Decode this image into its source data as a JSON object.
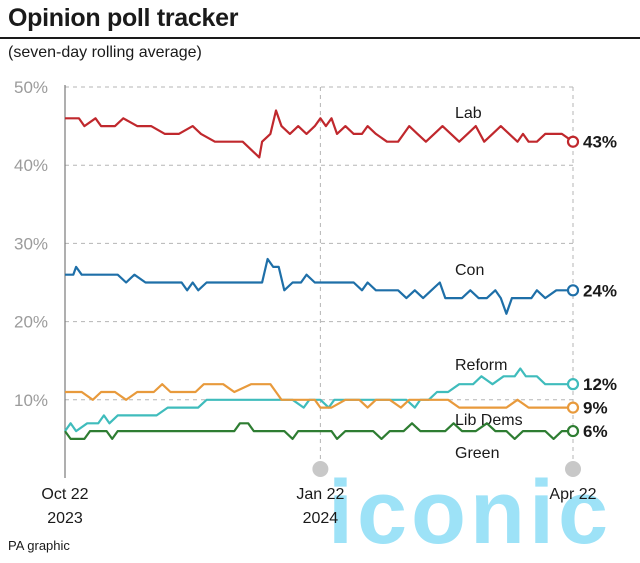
{
  "header": {
    "title": "Opinion poll tracker",
    "subtitle": "(seven-day rolling average)"
  },
  "footer": {
    "credit": "PA graphic"
  },
  "watermark": "iconic",
  "chart_data": {
    "type": "line",
    "grid": true,
    "ylim": [
      0,
      50
    ],
    "y_ticks": [
      {
        "value": 10,
        "label": "10%"
      },
      {
        "value": 20,
        "label": "20%"
      },
      {
        "value": 30,
        "label": "30%"
      },
      {
        "value": 40,
        "label": "40%"
      },
      {
        "value": 50,
        "label": "50%"
      }
    ],
    "x_ticks": [
      {
        "date": "2023-10-22",
        "line1": "Oct 22",
        "line2": "2023"
      },
      {
        "date": "2024-01-22",
        "line1": "Jan 22",
        "line2": "2024"
      },
      {
        "date": "2024-04-22",
        "line1": "Apr 22",
        "line2": ""
      }
    ],
    "series": [
      {
        "name": "Lab",
        "color": "#c0282d",
        "end_label": "43%",
        "points": [
          [
            "2023-10-22",
            46
          ],
          [
            "2023-10-27",
            46
          ],
          [
            "2023-10-29",
            45
          ],
          [
            "2023-11-02",
            46
          ],
          [
            "2023-11-04",
            45
          ],
          [
            "2023-11-09",
            45
          ],
          [
            "2023-11-12",
            46
          ],
          [
            "2023-11-17",
            45
          ],
          [
            "2023-11-22",
            45
          ],
          [
            "2023-11-27",
            44
          ],
          [
            "2023-12-02",
            44
          ],
          [
            "2023-12-07",
            45
          ],
          [
            "2023-12-10",
            44
          ],
          [
            "2023-12-15",
            43
          ],
          [
            "2023-12-20",
            43
          ],
          [
            "2023-12-25",
            43
          ],
          [
            "2023-12-28",
            42
          ],
          [
            "2023-12-31",
            41
          ],
          [
            "2024-01-01",
            43
          ],
          [
            "2024-01-04",
            44
          ],
          [
            "2024-01-06",
            47
          ],
          [
            "2024-01-08",
            45
          ],
          [
            "2024-01-11",
            44
          ],
          [
            "2024-01-14",
            45
          ],
          [
            "2024-01-17",
            44
          ],
          [
            "2024-01-20",
            45
          ],
          [
            "2024-01-22",
            46
          ],
          [
            "2024-01-24",
            45
          ],
          [
            "2024-01-26",
            46
          ],
          [
            "2024-01-28",
            44
          ],
          [
            "2024-01-31",
            45
          ],
          [
            "2024-02-03",
            44
          ],
          [
            "2024-02-06",
            44
          ],
          [
            "2024-02-08",
            45
          ],
          [
            "2024-02-11",
            44
          ],
          [
            "2024-02-15",
            43
          ],
          [
            "2024-02-19",
            43
          ],
          [
            "2024-02-21",
            44
          ],
          [
            "2024-02-23",
            45
          ],
          [
            "2024-02-26",
            44
          ],
          [
            "2024-02-29",
            43
          ],
          [
            "2024-03-03",
            44
          ],
          [
            "2024-03-06",
            45
          ],
          [
            "2024-03-09",
            44
          ],
          [
            "2024-03-12",
            43
          ],
          [
            "2024-03-15",
            44
          ],
          [
            "2024-03-18",
            45
          ],
          [
            "2024-03-21",
            43
          ],
          [
            "2024-03-24",
            44
          ],
          [
            "2024-03-27",
            45
          ],
          [
            "2024-03-30",
            44
          ],
          [
            "2024-04-02",
            43
          ],
          [
            "2024-04-04",
            44
          ],
          [
            "2024-04-06",
            43
          ],
          [
            "2024-04-09",
            43
          ],
          [
            "2024-04-12",
            44
          ],
          [
            "2024-04-15",
            44
          ],
          [
            "2024-04-18",
            44
          ],
          [
            "2024-04-22",
            43
          ]
        ]
      },
      {
        "name": "Con",
        "color": "#1e6fa8",
        "end_label": "24%",
        "points": [
          [
            "2023-10-22",
            26
          ],
          [
            "2023-10-25",
            26
          ],
          [
            "2023-10-26",
            27
          ],
          [
            "2023-10-28",
            26
          ],
          [
            "2023-11-02",
            26
          ],
          [
            "2023-11-10",
            26
          ],
          [
            "2023-11-13",
            25
          ],
          [
            "2023-11-16",
            26
          ],
          [
            "2023-11-20",
            25
          ],
          [
            "2023-11-25",
            25
          ],
          [
            "2023-11-30",
            25
          ],
          [
            "2023-12-03",
            25
          ],
          [
            "2023-12-05",
            24
          ],
          [
            "2023-12-07",
            25
          ],
          [
            "2023-12-09",
            24
          ],
          [
            "2023-12-12",
            25
          ],
          [
            "2023-12-18",
            25
          ],
          [
            "2023-12-22",
            25
          ],
          [
            "2023-12-27",
            25
          ],
          [
            "2024-01-01",
            25
          ],
          [
            "2024-01-03",
            28
          ],
          [
            "2024-01-05",
            27
          ],
          [
            "2024-01-07",
            27
          ],
          [
            "2024-01-09",
            24
          ],
          [
            "2024-01-12",
            25
          ],
          [
            "2024-01-15",
            25
          ],
          [
            "2024-01-17",
            26
          ],
          [
            "2024-01-20",
            25
          ],
          [
            "2024-01-23",
            25
          ],
          [
            "2024-01-28",
            25
          ],
          [
            "2024-02-03",
            25
          ],
          [
            "2024-02-06",
            24
          ],
          [
            "2024-02-08",
            25
          ],
          [
            "2024-02-11",
            24
          ],
          [
            "2024-02-15",
            24
          ],
          [
            "2024-02-19",
            24
          ],
          [
            "2024-02-22",
            23
          ],
          [
            "2024-02-25",
            24
          ],
          [
            "2024-02-28",
            23
          ],
          [
            "2024-03-02",
            24
          ],
          [
            "2024-03-05",
            25
          ],
          [
            "2024-03-07",
            23
          ],
          [
            "2024-03-10",
            23
          ],
          [
            "2024-03-13",
            23
          ],
          [
            "2024-03-16",
            24
          ],
          [
            "2024-03-19",
            23
          ],
          [
            "2024-03-22",
            23
          ],
          [
            "2024-03-25",
            24
          ],
          [
            "2024-03-27",
            23
          ],
          [
            "2024-03-29",
            21
          ],
          [
            "2024-03-31",
            23
          ],
          [
            "2024-04-03",
            23
          ],
          [
            "2024-04-07",
            23
          ],
          [
            "2024-04-09",
            24
          ],
          [
            "2024-04-12",
            23
          ],
          [
            "2024-04-16",
            24
          ],
          [
            "2024-04-22",
            24
          ]
        ]
      },
      {
        "name": "Reform",
        "color": "#3fbcbc",
        "end_label": "12%",
        "points": [
          [
            "2023-10-22",
            6
          ],
          [
            "2023-10-24",
            7
          ],
          [
            "2023-10-26",
            6
          ],
          [
            "2023-10-30",
            7
          ],
          [
            "2023-11-03",
            7
          ],
          [
            "2023-11-05",
            8
          ],
          [
            "2023-11-07",
            7
          ],
          [
            "2023-11-10",
            8
          ],
          [
            "2023-11-15",
            8
          ],
          [
            "2023-11-20",
            8
          ],
          [
            "2023-11-24",
            8
          ],
          [
            "2023-11-28",
            9
          ],
          [
            "2023-12-04",
            9
          ],
          [
            "2023-12-09",
            9
          ],
          [
            "2023-12-12",
            10
          ],
          [
            "2023-12-20",
            10
          ],
          [
            "2023-12-28",
            10
          ],
          [
            "2024-01-05",
            10
          ],
          [
            "2024-01-12",
            10
          ],
          [
            "2024-01-16",
            9
          ],
          [
            "2024-01-18",
            10
          ],
          [
            "2024-01-22",
            10
          ],
          [
            "2024-01-25",
            9
          ],
          [
            "2024-01-27",
            10
          ],
          [
            "2024-02-01",
            10
          ],
          [
            "2024-02-07",
            10
          ],
          [
            "2024-02-12",
            10
          ],
          [
            "2024-02-17",
            10
          ],
          [
            "2024-02-22",
            10
          ],
          [
            "2024-02-25",
            9
          ],
          [
            "2024-02-27",
            10
          ],
          [
            "2024-03-01",
            10
          ],
          [
            "2024-03-04",
            11
          ],
          [
            "2024-03-08",
            11
          ],
          [
            "2024-03-12",
            12
          ],
          [
            "2024-03-17",
            12
          ],
          [
            "2024-03-20",
            13
          ],
          [
            "2024-03-24",
            12
          ],
          [
            "2024-03-28",
            13
          ],
          [
            "2024-04-01",
            13
          ],
          [
            "2024-04-03",
            14
          ],
          [
            "2024-04-05",
            13
          ],
          [
            "2024-04-09",
            13
          ],
          [
            "2024-04-12",
            12
          ],
          [
            "2024-04-16",
            12
          ],
          [
            "2024-04-22",
            12
          ]
        ]
      },
      {
        "name": "Lib Dems",
        "color": "#e89a3c",
        "end_label": "9%",
        "points": [
          [
            "2023-10-22",
            11
          ],
          [
            "2023-10-28",
            11
          ],
          [
            "2023-11-01",
            10
          ],
          [
            "2023-11-04",
            11
          ],
          [
            "2023-11-09",
            11
          ],
          [
            "2023-11-13",
            10
          ],
          [
            "2023-11-17",
            11
          ],
          [
            "2023-11-23",
            11
          ],
          [
            "2023-11-26",
            12
          ],
          [
            "2023-11-29",
            11
          ],
          [
            "2023-12-03",
            11
          ],
          [
            "2023-12-08",
            11
          ],
          [
            "2023-12-11",
            12
          ],
          [
            "2023-12-18",
            12
          ],
          [
            "2023-12-22",
            11
          ],
          [
            "2023-12-28",
            12
          ],
          [
            "2024-01-04",
            12
          ],
          [
            "2024-01-06",
            11
          ],
          [
            "2024-01-08",
            10
          ],
          [
            "2024-01-14",
            10
          ],
          [
            "2024-01-20",
            10
          ],
          [
            "2024-01-22",
            9
          ],
          [
            "2024-01-26",
            9
          ],
          [
            "2024-01-31",
            10
          ],
          [
            "2024-02-05",
            10
          ],
          [
            "2024-02-08",
            9
          ],
          [
            "2024-02-11",
            10
          ],
          [
            "2024-02-16",
            10
          ],
          [
            "2024-02-20",
            9
          ],
          [
            "2024-02-23",
            10
          ],
          [
            "2024-02-28",
            10
          ],
          [
            "2024-03-03",
            10
          ],
          [
            "2024-03-08",
            10
          ],
          [
            "2024-03-12",
            9
          ],
          [
            "2024-03-18",
            9
          ],
          [
            "2024-03-24",
            9
          ],
          [
            "2024-03-29",
            9
          ],
          [
            "2024-04-02",
            10
          ],
          [
            "2024-04-06",
            9
          ],
          [
            "2024-04-12",
            9
          ],
          [
            "2024-04-17",
            9
          ],
          [
            "2024-04-22",
            9
          ]
        ]
      },
      {
        "name": "Green",
        "color": "#2e7d32",
        "end_label": "6%",
        "points": [
          [
            "2023-10-22",
            6
          ],
          [
            "2023-10-24",
            5
          ],
          [
            "2023-10-29",
            5
          ],
          [
            "2023-10-31",
            6
          ],
          [
            "2023-11-06",
            6
          ],
          [
            "2023-11-08",
            5
          ],
          [
            "2023-11-10",
            6
          ],
          [
            "2023-11-15",
            6
          ],
          [
            "2023-11-22",
            6
          ],
          [
            "2023-11-30",
            6
          ],
          [
            "2023-12-08",
            6
          ],
          [
            "2023-12-16",
            6
          ],
          [
            "2023-12-22",
            6
          ],
          [
            "2023-12-24",
            7
          ],
          [
            "2023-12-27",
            7
          ],
          [
            "2023-12-29",
            6
          ],
          [
            "2024-01-05",
            6
          ],
          [
            "2024-01-09",
            6
          ],
          [
            "2024-01-12",
            5
          ],
          [
            "2024-01-14",
            6
          ],
          [
            "2024-01-22",
            6
          ],
          [
            "2024-01-26",
            6
          ],
          [
            "2024-01-28",
            5
          ],
          [
            "2024-01-31",
            6
          ],
          [
            "2024-02-05",
            6
          ],
          [
            "2024-02-10",
            6
          ],
          [
            "2024-02-13",
            5
          ],
          [
            "2024-02-16",
            6
          ],
          [
            "2024-02-21",
            6
          ],
          [
            "2024-02-24",
            7
          ],
          [
            "2024-02-27",
            6
          ],
          [
            "2024-03-02",
            6
          ],
          [
            "2024-03-07",
            6
          ],
          [
            "2024-03-10",
            7
          ],
          [
            "2024-03-13",
            6
          ],
          [
            "2024-03-18",
            6
          ],
          [
            "2024-03-22",
            7
          ],
          [
            "2024-03-25",
            6
          ],
          [
            "2024-03-29",
            6
          ],
          [
            "2024-04-01",
            5
          ],
          [
            "2024-04-04",
            6
          ],
          [
            "2024-04-08",
            6
          ],
          [
            "2024-04-12",
            6
          ],
          [
            "2024-04-15",
            5
          ],
          [
            "2024-04-18",
            6
          ],
          [
            "2024-04-22",
            6
          ]
        ]
      }
    ]
  }
}
